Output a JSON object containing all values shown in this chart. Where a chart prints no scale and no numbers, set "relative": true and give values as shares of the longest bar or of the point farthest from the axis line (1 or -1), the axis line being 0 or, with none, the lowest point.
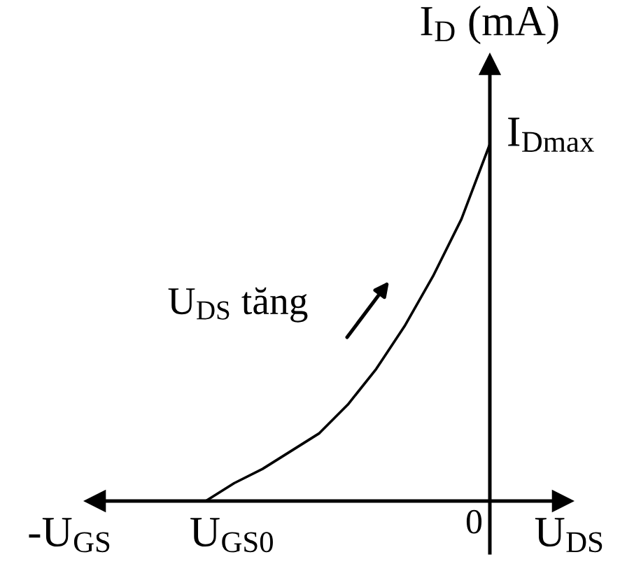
{
  "chart_data": {
    "type": "line",
    "relative": true,
    "xlabel": "-U$_{GS}$",
    "ylabel": "I$_{D}$ (mA)",
    "categories": [
      null,
      null,
      null,
      null,
      null,
      null,
      null,
      null,
      null,
      null,
      null
    ],
    "values": [
      0,
      0.05,
      0.09,
      0.14,
      0.19,
      0.27,
      0.37,
      0.49,
      0.63,
      0.79,
      1
    ],
    "color": "#000000",
    "annotations": [
      "U$_{DS}$ tăng",
      "U$_{DS}$",
      "I$_{Dmax}$",
      "0",
      "U$_{GS0}$"
    ]
  }
}
